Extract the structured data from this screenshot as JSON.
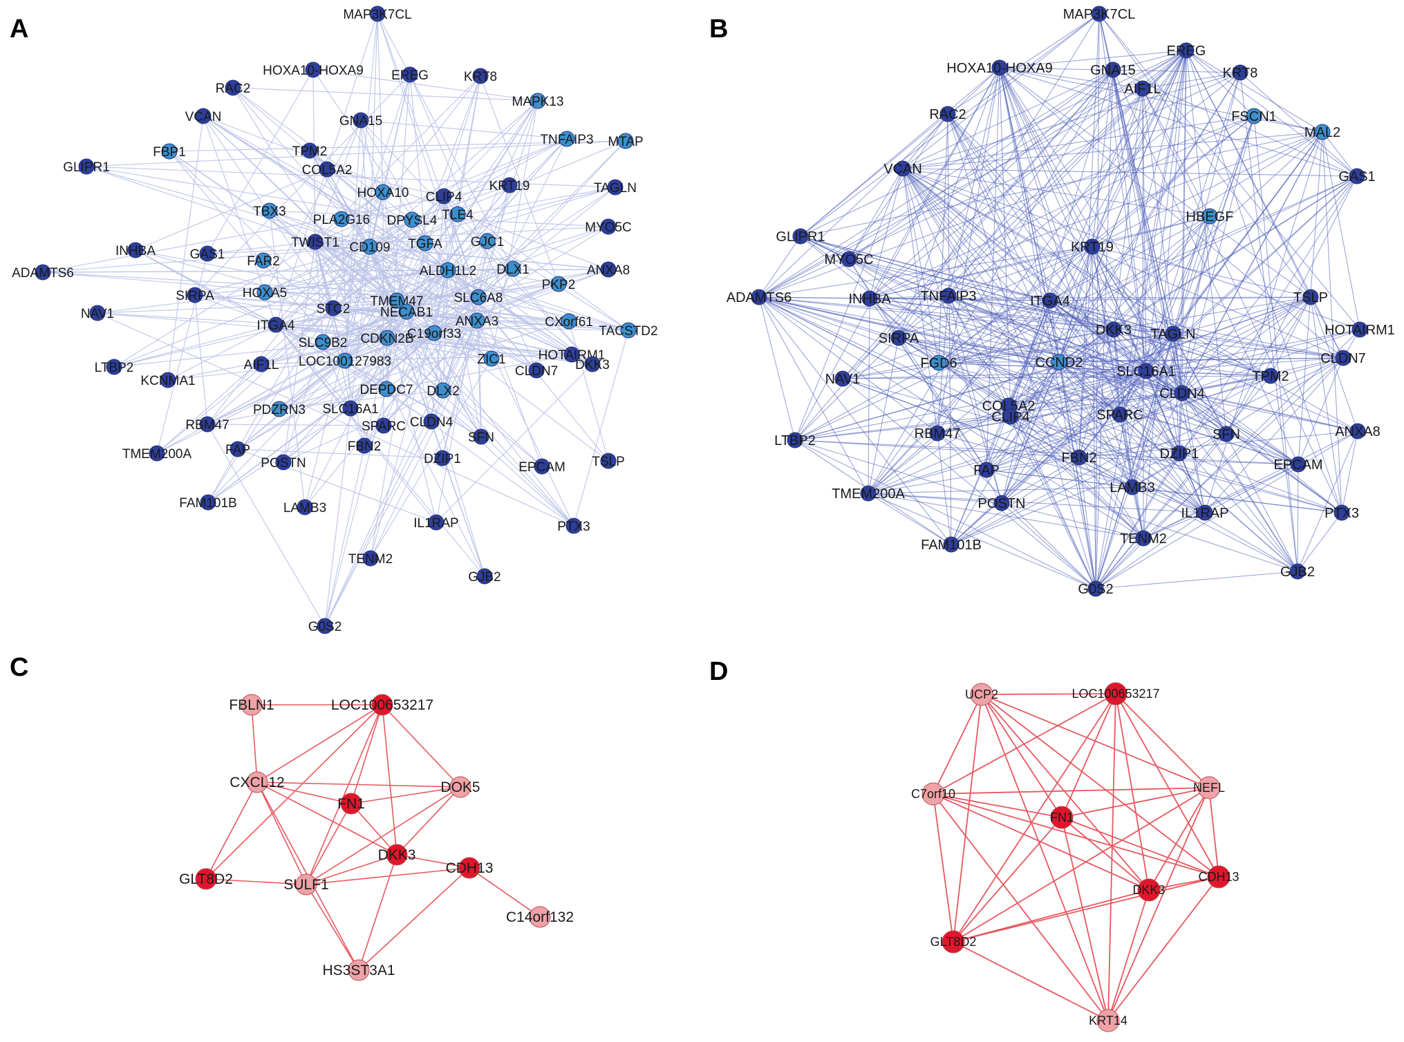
{
  "colors": {
    "edge_a": "#b9c1e6",
    "edge_b": "#4a5db8",
    "edge_red": "#e8585f",
    "node_dark_blue": "#2e3f9a",
    "node_light_blue": "#3d8fcc",
    "node_dark_red": "#e0162b",
    "node_light_red": "#f0a2a6"
  },
  "panels": [
    {
      "letter": "A",
      "nodes": [
        {
          "label": "MAP3K7CL",
          "tone": "dark"
        },
        {
          "label": "HOXA10-HOXA9",
          "tone": "dark"
        },
        {
          "label": "EREG",
          "tone": "dark"
        },
        {
          "label": "KRT8",
          "tone": "dark"
        },
        {
          "label": "RAC2",
          "tone": "dark"
        },
        {
          "label": "MAPK13",
          "tone": "light"
        },
        {
          "label": "VCAN",
          "tone": "dark"
        },
        {
          "label": "GNA15",
          "tone": "dark"
        },
        {
          "label": "TNFAIP3",
          "tone": "light"
        },
        {
          "label": "MTAP",
          "tone": "light"
        },
        {
          "label": "TPM2",
          "tone": "dark"
        },
        {
          "label": "GLIPR1",
          "tone": "dark"
        },
        {
          "label": "FBP1",
          "tone": "light"
        },
        {
          "label": "COL5A2",
          "tone": "dark"
        },
        {
          "label": "KRT19",
          "tone": "dark"
        },
        {
          "label": "TAGLN",
          "tone": "dark"
        },
        {
          "label": "HOXA10",
          "tone": "light"
        },
        {
          "label": "CLIP4",
          "tone": "dark"
        },
        {
          "label": "TBX3",
          "tone": "light"
        },
        {
          "label": "PLA2G16",
          "tone": "light"
        },
        {
          "label": "DPYSL4",
          "tone": "light"
        },
        {
          "label": "TLE4",
          "tone": "light"
        },
        {
          "label": "MYO5C",
          "tone": "dark"
        },
        {
          "label": "INHBA",
          "tone": "dark"
        },
        {
          "label": "TWIST1",
          "tone": "dark"
        },
        {
          "label": "CD109",
          "tone": "light"
        },
        {
          "label": "TGFA",
          "tone": "light"
        },
        {
          "label": "GJC1",
          "tone": "light"
        },
        {
          "label": "GAS1",
          "tone": "dark"
        },
        {
          "label": "FAR2",
          "tone": "light"
        },
        {
          "label": "DLX1",
          "tone": "light"
        },
        {
          "label": "ADAMTS6",
          "tone": "dark"
        },
        {
          "label": "ALDH1L2",
          "tone": "light"
        },
        {
          "label": "ANXA8",
          "tone": "dark"
        },
        {
          "label": "SIRPA",
          "tone": "dark"
        },
        {
          "label": "HOXA5",
          "tone": "light"
        },
        {
          "label": "TMEM47",
          "tone": "light"
        },
        {
          "label": "SLC6A8",
          "tone": "light"
        },
        {
          "label": "PKP2",
          "tone": "light"
        },
        {
          "label": "NAV1",
          "tone": "dark"
        },
        {
          "label": "STC2",
          "tone": "dark"
        },
        {
          "label": "NECAB1",
          "tone": "light"
        },
        {
          "label": "ANXA3",
          "tone": "light"
        },
        {
          "label": "CXorf61",
          "tone": "light"
        },
        {
          "label": "ITGA4",
          "tone": "dark"
        },
        {
          "label": "C19orf33",
          "tone": "light"
        },
        {
          "label": "TACSTD2",
          "tone": "light"
        },
        {
          "label": "SLC9B2",
          "tone": "light"
        },
        {
          "label": "CDKN2B",
          "tone": "light"
        },
        {
          "label": "LTBP2",
          "tone": "dark"
        },
        {
          "label": "AIF1L",
          "tone": "dark"
        },
        {
          "label": "LOC100127983",
          "tone": "light"
        },
        {
          "label": "ZIC1",
          "tone": "light"
        },
        {
          "label": "HOTAIRM1",
          "tone": "dark"
        },
        {
          "label": "KCNMA1",
          "tone": "dark"
        },
        {
          "label": "CLDN7",
          "tone": "dark"
        },
        {
          "label": "DKK3",
          "tone": "dark"
        },
        {
          "label": "DEPDC7",
          "tone": "light"
        },
        {
          "label": "DLX2",
          "tone": "light"
        },
        {
          "label": "PDZRN3",
          "tone": "light"
        },
        {
          "label": "SLC16A1",
          "tone": "dark"
        },
        {
          "label": "RBM47",
          "tone": "dark"
        },
        {
          "label": "CLDN4",
          "tone": "dark"
        },
        {
          "label": "SPARC",
          "tone": "dark"
        },
        {
          "label": "SFN",
          "tone": "dark"
        },
        {
          "label": "FAP",
          "tone": "dark"
        },
        {
          "label": "TMEM200A",
          "tone": "dark"
        },
        {
          "label": "FBN2",
          "tone": "dark"
        },
        {
          "label": "POSTN",
          "tone": "dark"
        },
        {
          "label": "EPCAM",
          "tone": "dark"
        },
        {
          "label": "TSLP",
          "tone": "dark"
        },
        {
          "label": "DZIP1",
          "tone": "dark"
        },
        {
          "label": "FAM101B",
          "tone": "dark"
        },
        {
          "label": "LAMB3",
          "tone": "dark"
        },
        {
          "label": "IL1RAP",
          "tone": "dark"
        },
        {
          "label": "PTX3",
          "tone": "dark"
        },
        {
          "label": "TENM2",
          "tone": "dark"
        },
        {
          "label": "GJB2",
          "tone": "dark"
        },
        {
          "label": "G0S2",
          "tone": "dark"
        }
      ]
    },
    {
      "letter": "B",
      "nodes": [
        {
          "label": "MAP3K7CL",
          "tone": "dark"
        },
        {
          "label": "HOXA10-HOXA9",
          "tone": "dark"
        },
        {
          "label": "GNA15",
          "tone": "dark"
        },
        {
          "label": "EREG",
          "tone": "dark"
        },
        {
          "label": "KRT8",
          "tone": "dark"
        },
        {
          "label": "AIF1L",
          "tone": "dark"
        },
        {
          "label": "RAC2",
          "tone": "dark"
        },
        {
          "label": "FSCN1",
          "tone": "light"
        },
        {
          "label": "MAL2",
          "tone": "light"
        },
        {
          "label": "VCAN",
          "tone": "dark"
        },
        {
          "label": "GAS1",
          "tone": "dark"
        },
        {
          "label": "HBEGF",
          "tone": "light"
        },
        {
          "label": "GLIPR1",
          "tone": "dark"
        },
        {
          "label": "KRT19",
          "tone": "dark"
        },
        {
          "label": "MYO5C",
          "tone": "dark"
        },
        {
          "label": "ADAMTS6",
          "tone": "dark"
        },
        {
          "label": "INHBA",
          "tone": "dark"
        },
        {
          "label": "TNFAIP3",
          "tone": "dark"
        },
        {
          "label": "ITGA4",
          "tone": "dark"
        },
        {
          "label": "TSLP",
          "tone": "dark"
        },
        {
          "label": "DKK3",
          "tone": "dark"
        },
        {
          "label": "TAGLN",
          "tone": "dark"
        },
        {
          "label": "HOTAIRM1",
          "tone": "dark"
        },
        {
          "label": "SIRPA",
          "tone": "dark"
        },
        {
          "label": "FGD6",
          "tone": "light"
        },
        {
          "label": "CCND2",
          "tone": "light"
        },
        {
          "label": "SLC16A1",
          "tone": "dark"
        },
        {
          "label": "CLDN7",
          "tone": "dark"
        },
        {
          "label": "NAV1",
          "tone": "dark"
        },
        {
          "label": "TPM2",
          "tone": "dark"
        },
        {
          "label": "CLDN4",
          "tone": "dark"
        },
        {
          "label": "COL5A2",
          "tone": "dark"
        },
        {
          "label": "SPARC",
          "tone": "dark"
        },
        {
          "label": "CLIP4",
          "tone": "dark"
        },
        {
          "label": "RBM47",
          "tone": "dark"
        },
        {
          "label": "LTBP2",
          "tone": "dark"
        },
        {
          "label": "SFN",
          "tone": "dark"
        },
        {
          "label": "ANXA8",
          "tone": "dark"
        },
        {
          "label": "FBN2",
          "tone": "dark"
        },
        {
          "label": "DZIP1",
          "tone": "dark"
        },
        {
          "label": "FAP",
          "tone": "dark"
        },
        {
          "label": "EPCAM",
          "tone": "dark"
        },
        {
          "label": "TMEM200A",
          "tone": "dark"
        },
        {
          "label": "LAMB3",
          "tone": "dark"
        },
        {
          "label": "POSTN",
          "tone": "dark"
        },
        {
          "label": "IL1RAP",
          "tone": "dark"
        },
        {
          "label": "PTX3",
          "tone": "dark"
        },
        {
          "label": "TENM2",
          "tone": "dark"
        },
        {
          "label": "FAM101B",
          "tone": "dark"
        },
        {
          "label": "GJB2",
          "tone": "dark"
        },
        {
          "label": "G0S2",
          "tone": "dark"
        }
      ]
    },
    {
      "letter": "C",
      "nodes": [
        {
          "label": "FBLN1",
          "tone": "light"
        },
        {
          "label": "LOC100653217",
          "tone": "dark"
        },
        {
          "label": "CXCL12",
          "tone": "light"
        },
        {
          "label": "DOK5",
          "tone": "light"
        },
        {
          "label": "FN1",
          "tone": "dark"
        },
        {
          "label": "DKK3",
          "tone": "dark"
        },
        {
          "label": "CDH13",
          "tone": "dark"
        },
        {
          "label": "GLT8D2",
          "tone": "dark"
        },
        {
          "label": "SULF1",
          "tone": "light"
        },
        {
          "label": "C14orf132",
          "tone": "light"
        },
        {
          "label": "HS3ST3A1",
          "tone": "light"
        }
      ],
      "edges": [
        [
          "FBLN1",
          "LOC100653217"
        ],
        [
          "FBLN1",
          "CXCL12"
        ],
        [
          "LOC100653217",
          "CXCL12"
        ],
        [
          "LOC100653217",
          "FN1"
        ],
        [
          "LOC100653217",
          "DOK5"
        ],
        [
          "LOC100653217",
          "DKK3"
        ],
        [
          "LOC100653217",
          "SULF1"
        ],
        [
          "LOC100653217",
          "GLT8D2"
        ],
        [
          "CXCL12",
          "FN1"
        ],
        [
          "CXCL12",
          "DOK5"
        ],
        [
          "CXCL12",
          "GLT8D2"
        ],
        [
          "CXCL12",
          "SULF1"
        ],
        [
          "CXCL12",
          "DKK3"
        ],
        [
          "CXCL12",
          "HS3ST3A1"
        ],
        [
          "FN1",
          "DOK5"
        ],
        [
          "FN1",
          "SULF1"
        ],
        [
          "FN1",
          "DKK3"
        ],
        [
          "DOK5",
          "SULF1"
        ],
        [
          "DOK5",
          "DKK3"
        ],
        [
          "DKK3",
          "CDH13"
        ],
        [
          "DKK3",
          "SULF1"
        ],
        [
          "DKK3",
          "HS3ST3A1"
        ],
        [
          "CDH13",
          "C14orf132"
        ],
        [
          "CDH13",
          "SULF1"
        ],
        [
          "CDH13",
          "HS3ST3A1"
        ],
        [
          "GLT8D2",
          "SULF1"
        ],
        [
          "SULF1",
          "HS3ST3A1"
        ]
      ]
    },
    {
      "letter": "D",
      "nodes": [
        {
          "label": "UCP2",
          "tone": "light"
        },
        {
          "label": "LOC100653217",
          "tone": "dark"
        },
        {
          "label": "C7orf10",
          "tone": "light"
        },
        {
          "label": "NEFL",
          "tone": "light"
        },
        {
          "label": "FN1",
          "tone": "dark"
        },
        {
          "label": "DKK3",
          "tone": "dark"
        },
        {
          "label": "CDH13",
          "tone": "dark"
        },
        {
          "label": "GLT8D2",
          "tone": "dark"
        },
        {
          "label": "KRT14",
          "tone": "light"
        }
      ]
    }
  ]
}
